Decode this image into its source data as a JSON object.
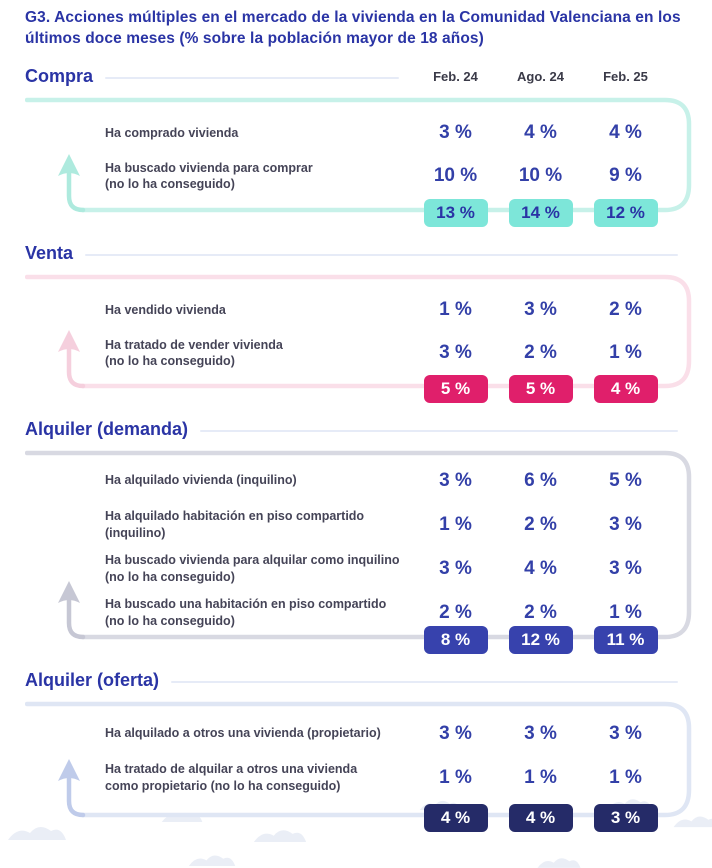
{
  "title": "G3. Acciones múltiples en el mercado de la vivienda en la Comunidad Valenciana en los últimos doce meses (% sobre la población mayor de 18 años)",
  "columns": [
    "Feb. 24",
    "Ago. 24",
    "Feb. 25"
  ],
  "sections": [
    {
      "title": "Compra",
      "colors": {
        "border": "#c7f1e9",
        "arrow": "#aeeade",
        "badge_bg": "#7de6d9",
        "badge_text": "#2a34a5"
      },
      "rows": [
        {
          "label": "Ha comprado vivienda",
          "sub": "",
          "values": [
            "3 %",
            "4 %",
            "4 %"
          ]
        },
        {
          "label": "Ha buscado vivienda para comprar",
          "sub": "(no lo ha conseguido)",
          "values": [
            "10 %",
            "10 %",
            "9 %"
          ]
        }
      ],
      "totals": [
        "13 %",
        "14 %",
        "12 %"
      ]
    },
    {
      "title": "Venta",
      "colors": {
        "border": "#fadfe9",
        "arrow": "#f5cfdd",
        "badge_bg": "#e01f6b",
        "badge_text": "#ffffff"
      },
      "rows": [
        {
          "label": "Ha vendido vivienda",
          "sub": "",
          "values": [
            "1 %",
            "3 %",
            "2 %"
          ]
        },
        {
          "label": "Ha tratado de vender vivienda",
          "sub": "(no lo ha conseguido)",
          "values": [
            "3 %",
            "2 %",
            "1 %"
          ]
        }
      ],
      "totals": [
        "5 %",
        "5 %",
        "4 %"
      ]
    },
    {
      "title": "Alquiler (demanda)",
      "colors": {
        "border": "#d8d9e2",
        "arrow": "#c6c7d4",
        "badge_bg": "#3742ad",
        "badge_text": "#ffffff"
      },
      "rows": [
        {
          "label": "Ha alquilado vivienda (inquilino)",
          "sub": "",
          "values": [
            "3 %",
            "6 %",
            "5 %"
          ]
        },
        {
          "label": "Ha alquilado habitación en piso compartido (inquilino)",
          "sub": "",
          "values": [
            "1 %",
            "2 %",
            "3 %"
          ]
        },
        {
          "label": "Ha buscado vivienda para alquilar como inquilino",
          "sub": "(no lo ha conseguido)",
          "values": [
            "3 %",
            "4 %",
            "3 %"
          ]
        },
        {
          "label": "Ha buscado una habitación en piso compartido",
          "sub": "(no lo ha conseguido)",
          "values": [
            "2 %",
            "2 %",
            "1 %"
          ]
        }
      ],
      "totals": [
        "8 %",
        "12 %",
        "11 %"
      ]
    },
    {
      "title": "Alquiler (oferta)",
      "colors": {
        "border": "#dfe6f4",
        "arrow": "#bfcbea",
        "badge_bg": "#252b68",
        "badge_text": "#ffffff"
      },
      "rows": [
        {
          "label": "Ha alquilado a otros una vivienda (propietario)",
          "sub": "",
          "values": [
            "3 %",
            "3 %",
            "3 %"
          ]
        },
        {
          "label": "Ha tratado de alquilar a otros una vivienda",
          "sub": "como propietario (no lo ha conseguido)",
          "values": [
            "1 %",
            "1 %",
            "1 %"
          ]
        }
      ],
      "totals": [
        "4 %",
        "4 %",
        "3 %"
      ]
    }
  ],
  "chart_data": {
    "type": "table",
    "title": "G3. Acciones múltiples en el mercado de la vivienda en la Comunidad Valenciana en los últimos doce meses (% sobre la población mayor de 18 años)",
    "unit": "%",
    "columns": [
      "Feb. 24",
      "Ago. 24",
      "Feb. 25"
    ],
    "groups": [
      {
        "name": "Compra",
        "rows": [
          {
            "label": "Ha comprado vivienda",
            "values": [
              3,
              4,
              4
            ]
          },
          {
            "label": "Ha buscado vivienda para comprar (no lo ha conseguido)",
            "values": [
              10,
              10,
              9
            ]
          }
        ],
        "total": [
          13,
          14,
          12
        ]
      },
      {
        "name": "Venta",
        "rows": [
          {
            "label": "Ha vendido vivienda",
            "values": [
              1,
              3,
              2
            ]
          },
          {
            "label": "Ha tratado de vender vivienda (no lo ha conseguido)",
            "values": [
              3,
              2,
              1
            ]
          }
        ],
        "total": [
          5,
          5,
          4
        ]
      },
      {
        "name": "Alquiler (demanda)",
        "rows": [
          {
            "label": "Ha alquilado vivienda (inquilino)",
            "values": [
              3,
              6,
              5
            ]
          },
          {
            "label": "Ha alquilado habitación en piso compartido (inquilino)",
            "values": [
              1,
              2,
              3
            ]
          },
          {
            "label": "Ha buscado vivienda para alquilar como inquilino (no lo ha conseguido)",
            "values": [
              3,
              4,
              3
            ]
          },
          {
            "label": "Ha buscado una habitación en piso compartido (no lo ha conseguido)",
            "values": [
              2,
              2,
              1
            ]
          }
        ],
        "total": [
          8,
          12,
          11
        ]
      },
      {
        "name": "Alquiler (oferta)",
        "rows": [
          {
            "label": "Ha alquilado a otros una vivienda (propietario)",
            "values": [
              3,
              3,
              3
            ]
          },
          {
            "label": "Ha tratado de alquilar a otros una vivienda como propietario (no lo ha conseguido)",
            "values": [
              1,
              1,
              1
            ]
          }
        ],
        "total": [
          4,
          4,
          3
        ]
      }
    ]
  }
}
